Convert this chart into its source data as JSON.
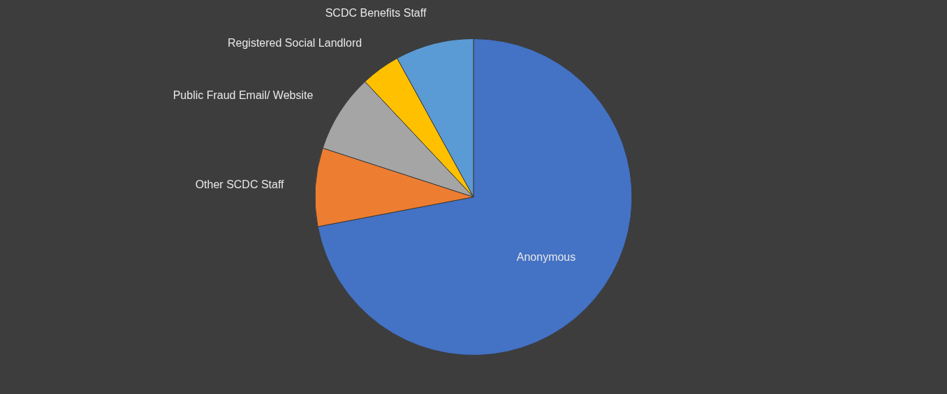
{
  "chart_data": {
    "type": "pie",
    "categories": [
      "Anonymous",
      "Other SCDC Staff",
      "Public Fraud Email/ Website",
      "Registered Social Landlord",
      "SCDC Benefits Staff"
    ],
    "values": [
      72,
      8,
      8,
      4,
      8
    ],
    "colors": [
      "#4472c4",
      "#ed7d31",
      "#a5a5a5",
      "#ffc000",
      "#5b9bd5"
    ],
    "legend": false
  }
}
